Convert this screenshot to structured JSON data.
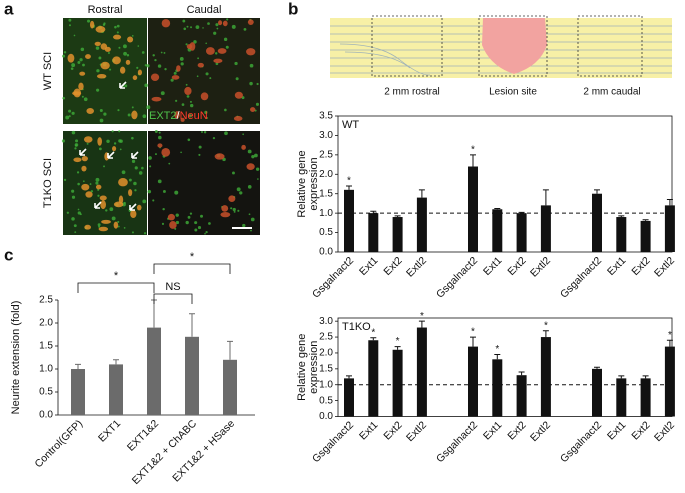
{
  "panel_labels": [
    "a",
    "b",
    "c"
  ],
  "micrographs": {
    "columns": [
      "Rostral",
      "Caudal"
    ],
    "rows": [
      "WT SCI",
      "T1KO SCI"
    ],
    "stain": [
      "EXT2",
      "/",
      "NeuN"
    ]
  },
  "schematic": {
    "labels": [
      "2 mm rostral",
      "Lesion site",
      "2 mm caudal"
    ]
  },
  "chart_data": [
    {
      "type": "bar",
      "label": "WT",
      "ylabel_lines": [
        "Relative gene",
        "expression"
      ],
      "categories": [
        "Gsgalnact2",
        "Ext1",
        "Ext2",
        "Extl2",
        "Gsgalnact2",
        "Ext1",
        "Ext2",
        "Extl2",
        "Gsgalnact2",
        "Ext1",
        "Ext2",
        "Extl2"
      ],
      "values": [
        1.6,
        1.0,
        0.9,
        1.4,
        2.2,
        1.1,
        1.0,
        1.2,
        1.5,
        0.9,
        0.8,
        1.2
      ],
      "errors": [
        0.1,
        0.05,
        0.03,
        0.2,
        0.3,
        0.02,
        0.02,
        0.4,
        0.1,
        0.03,
        0.03,
        0.15
      ],
      "significance": [
        "*",
        null,
        null,
        null,
        "*",
        null,
        null,
        null,
        null,
        null,
        null,
        null
      ],
      "color": "#111111",
      "reference_line": 1.0,
      "ylim": [
        0,
        3.5
      ],
      "yticks": [
        {
          "value": 0,
          "label": "0.0"
        },
        {
          "value": 0.5,
          "label": "0.5"
        },
        {
          "value": 1,
          "label": "1.0"
        },
        {
          "value": 1.5,
          "label": "1.5"
        },
        {
          "value": 2,
          "label": "2.0"
        },
        {
          "value": 2.5,
          "label": "2.5"
        },
        {
          "value": 3,
          "label": "3.0"
        },
        {
          "value": 3.5,
          "label": "3.5"
        }
      ]
    },
    {
      "type": "bar",
      "label": "T1KO",
      "ylabel_lines": [
        "Relative gene",
        "expression"
      ],
      "categories": [
        "Gsgalnact2",
        "Ext1",
        "Ext2",
        "Extl2",
        "Gsgalnact2",
        "Ext1",
        "Ext2",
        "Extl2",
        "Gsgalnact2",
        "Ext1",
        "Ext2",
        "Extl2"
      ],
      "values": [
        1.2,
        2.4,
        2.1,
        2.8,
        2.2,
        1.8,
        1.3,
        2.5,
        1.5,
        1.2,
        1.2,
        2.2
      ],
      "errors": [
        0.08,
        0.08,
        0.1,
        0.2,
        0.3,
        0.15,
        0.1,
        0.2,
        0.05,
        0.08,
        0.08,
        0.2
      ],
      "significance": [
        null,
        "*",
        "*",
        "*",
        "*",
        "*",
        null,
        "*",
        null,
        null,
        null,
        "*"
      ],
      "color": "#111111",
      "reference_line": 1.0,
      "ylim": [
        0,
        3.1
      ],
      "yticks": [
        {
          "value": 0,
          "label": "0.0"
        },
        {
          "value": 0.5,
          "label": "0.5"
        },
        {
          "value": 1,
          "label": "1.0"
        },
        {
          "value": 1.5,
          "label": "1.5"
        },
        {
          "value": 2,
          "label": "2.0"
        },
        {
          "value": 2.5,
          "label": "2.5"
        },
        {
          "value": 3,
          "label": "3.0"
        }
      ]
    },
    {
      "type": "bar",
      "ylabel_lines": [
        "Neurite extension (fold)"
      ],
      "categories": [
        "Control(GFP)",
        "EXT1",
        "EXT1&2",
        "EXT1&2 + ChABC",
        "EXT1&2 + HSase"
      ],
      "values": [
        1.0,
        1.1,
        1.9,
        1.7,
        1.2
      ],
      "errors": [
        0.1,
        0.1,
        0.6,
        0.5,
        0.4
      ],
      "annotations": [
        "*",
        "NS",
        "*"
      ],
      "color": "#6b6b6b",
      "ylim": [
        0,
        2.5
      ],
      "yticks": [
        {
          "value": 0,
          "label": "0.0"
        },
        {
          "value": 0.5,
          "label": "0.5"
        },
        {
          "value": 1,
          "label": "1.0"
        },
        {
          "value": 1.5,
          "label": "1.5"
        },
        {
          "value": 2,
          "label": "2.0"
        },
        {
          "value": 2.5,
          "label": "2.5"
        }
      ]
    }
  ]
}
